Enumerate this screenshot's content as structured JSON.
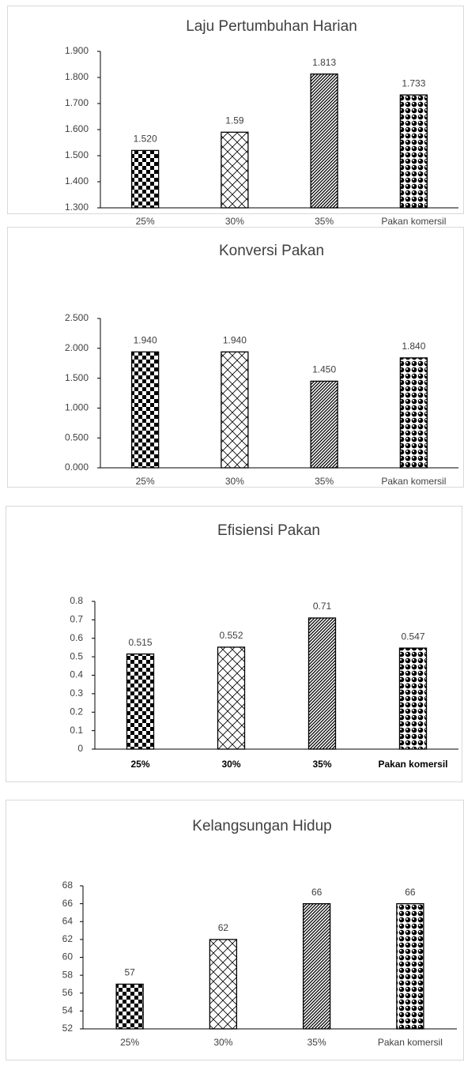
{
  "chart_data": [
    {
      "type": "bar",
      "title": "Laju Pertumbuhan Harian",
      "categories": [
        "25%",
        "30%",
        "35%",
        "Pakan komersil"
      ],
      "values": [
        1.52,
        1.59,
        1.813,
        1.733
      ],
      "value_labels": [
        "1.520",
        "1.59",
        "1.813",
        "1.733"
      ],
      "ylim": [
        1.3,
        1.9
      ],
      "yticks": [
        {
          "value": 1.3,
          "label": "1.300"
        },
        {
          "value": 1.4,
          "label": "1.400"
        },
        {
          "value": 1.5,
          "label": "1.500"
        },
        {
          "value": 1.6,
          "label": "1.600"
        },
        {
          "value": 1.7,
          "label": "1.700"
        },
        {
          "value": 1.8,
          "label": "1.800"
        },
        {
          "value": 1.9,
          "label": "1.900"
        }
      ]
    },
    {
      "type": "bar",
      "title": "Konversi Pakan",
      "categories": [
        "25%",
        "30%",
        "35%",
        "Pakan komersil"
      ],
      "values": [
        1.94,
        1.94,
        1.45,
        1.84
      ],
      "value_labels": [
        "1.940",
        "1.940",
        "1.450",
        "1.840"
      ],
      "ylim": [
        0,
        2.5
      ],
      "yticks": [
        {
          "value": 0,
          "label": "0.000"
        },
        {
          "value": 0.5,
          "label": "0.500"
        },
        {
          "value": 1,
          "label": "1.000"
        },
        {
          "value": 1.5,
          "label": "1.500"
        },
        {
          "value": 2,
          "label": "2.000"
        },
        {
          "value": 2.5,
          "label": "2.500"
        }
      ]
    },
    {
      "type": "bar",
      "title": "Efisiensi Pakan",
      "categories": [
        "25%",
        "30%",
        "35%",
        "Pakan komersil"
      ],
      "values": [
        0.515,
        0.552,
        0.71,
        0.547
      ],
      "ylim": [
        0,
        0.8
      ],
      "yticks": [
        0,
        0.1,
        0.2,
        0.3,
        0.4,
        0.5,
        0.6,
        0.7,
        0.8
      ]
    },
    {
      "type": "bar",
      "title": "Kelangsungan Hidup",
      "categories": [
        "25%",
        "30%",
        "35%",
        "Pakan komersil"
      ],
      "values": [
        57,
        62,
        66,
        66
      ],
      "ylim": [
        52,
        68
      ],
      "yticks": [
        52,
        54,
        56,
        58,
        60,
        62,
        64,
        66,
        68
      ]
    }
  ]
}
